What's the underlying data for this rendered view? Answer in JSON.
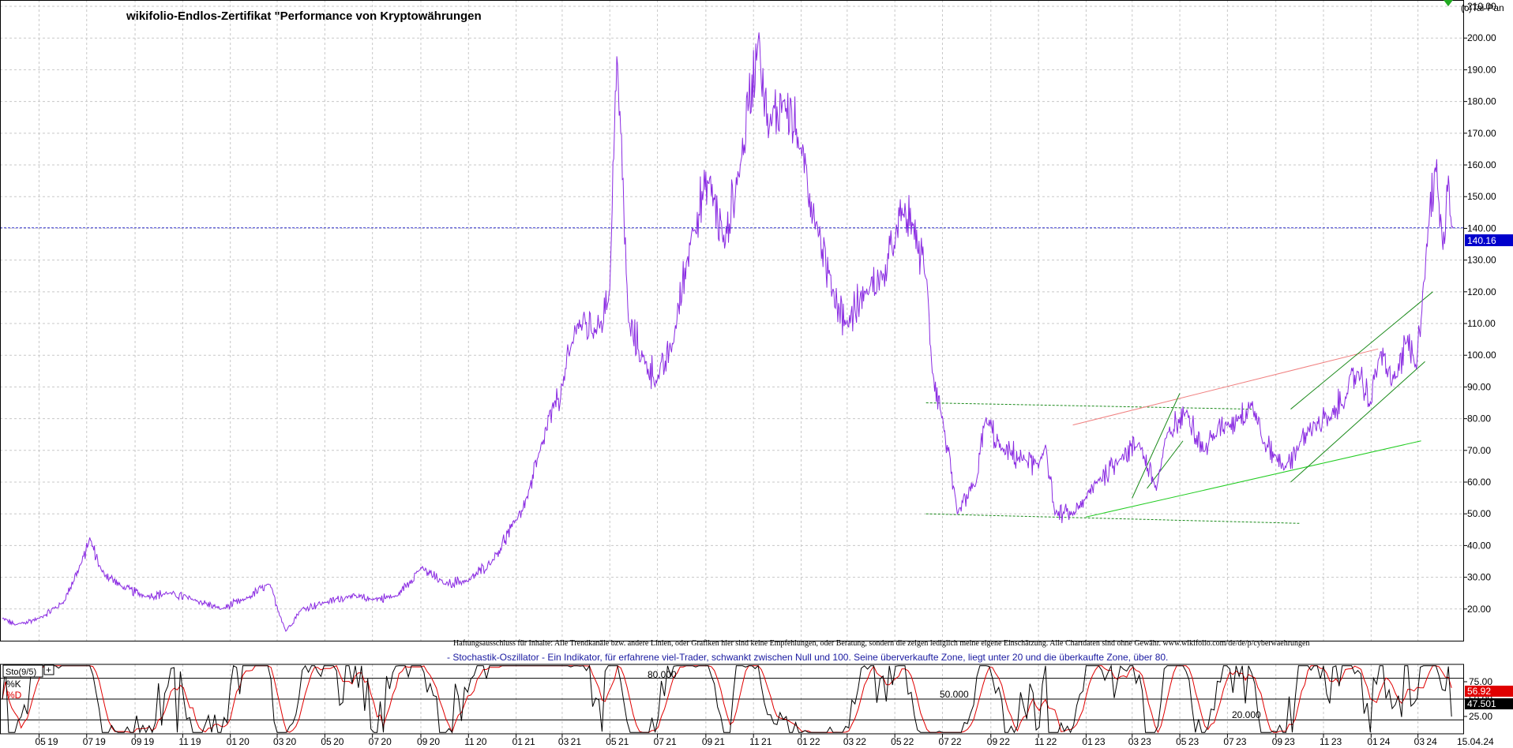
{
  "header": {
    "title": "wikifolio-Endlos-Zertifikat \"Performance von Kryptowährungen",
    "copyright": "(c)Tai-Pan"
  },
  "notes": {
    "disclaimer": "Haftungsausschluss für Inhalte: Alle Trendkanäle bzw. andere Linien, oder Grafiken hier sind keine Empfehlungen, oder Beratung, sondern die zeigen lediglich meine eigene Einschätzung. Alle Chartdaten sind ohne Gewähr. www.wikifolio.com/de/de/p/cyberwaehrungen",
    "oscillator_description": "- Stochastik-Oszillator - Ein Indikator, für erfahrene viel-Trader, schwankt zwischen Null und 100. Seine überverkaufte Zone, liegt unter 20 und die überkaufte Zone, über 80."
  },
  "colors": {
    "price_line": "#8a2be2",
    "current_price_line": "#3333cc",
    "k_line": "#000000",
    "d_line": "#e00000",
    "dark_green_trend": "#1a8a1a",
    "bright_green_trend": "#22cc22",
    "red_trend": "#f08080",
    "grid": "#c8c8c8"
  },
  "chart_data": [
    {
      "type": "line",
      "title": "wikifolio-Endlos-Zertifikat \"Performance von Kryptowährungen",
      "x_ticks": [
        "05.19",
        "07.19",
        "09.19",
        "11.19",
        "01.20",
        "03.20",
        "05.20",
        "07.20",
        "09.20",
        "11.20",
        "01.21",
        "03.21",
        "05.21",
        "07.21",
        "09.21",
        "11.21",
        "01.22",
        "03.22",
        "05.22",
        "07.22",
        "09.22",
        "11.22",
        "01.23",
        "03.23",
        "05.23",
        "07.23",
        "09.23",
        "11.23",
        "01.24",
        "03.24"
      ],
      "x_last_label": "15.04.24",
      "y_ticks": [
        "20.00",
        "30.00",
        "40.00",
        "50.00",
        "60.00",
        "70.00",
        "80.00",
        "90.00",
        "100.00",
        "110.00",
        "120.00",
        "130.00",
        "140.00",
        "150.00",
        "160.00",
        "170.00",
        "180.00",
        "190.00",
        "200.00",
        "210.00"
      ],
      "ylim": [
        10,
        212
      ],
      "grid": true,
      "current_value": "140.16",
      "series": [
        {
          "x": [
            "2019-03-15",
            "2019-04-01",
            "2019-05-01",
            "2019-06-01",
            "2019-06-25",
            "2019-07-05",
            "2019-07-20",
            "2019-08-15",
            "2019-09-15",
            "2019-10-15",
            "2019-11-15",
            "2019-12-20",
            "2020-01-20",
            "2020-02-20",
            "2020-03-12",
            "2020-04-01",
            "2020-05-01",
            "2020-06-01",
            "2020-07-01",
            "2020-08-01",
            "2020-09-01",
            "2020-10-01",
            "2020-11-01",
            "2020-12-01",
            "2021-01-01",
            "2021-01-15",
            "2021-02-01",
            "2021-02-20",
            "2021-03-01",
            "2021-03-20",
            "2021-04-14",
            "2021-05-01",
            "2021-05-10",
            "2021-05-25",
            "2021-06-15",
            "2021-07-01",
            "2021-07-20",
            "2021-08-15",
            "2021-09-05",
            "2021-09-25",
            "2021-10-15",
            "2021-11-08",
            "2021-11-20",
            "2021-12-10",
            "2022-01-01",
            "2022-01-22",
            "2022-02-10",
            "2022-03-01",
            "2022-03-25",
            "2022-04-15",
            "2022-05-01",
            "2022-05-12",
            "2022-05-25",
            "2022-06-10",
            "2022-06-18",
            "2022-07-01",
            "2022-07-20",
            "2022-08-13",
            "2022-08-25",
            "2022-09-15",
            "2022-10-15",
            "2022-11-01",
            "2022-11-10",
            "2022-11-22",
            "2022-12-15",
            "2023-01-01",
            "2023-01-15",
            "2023-02-15",
            "2023-03-10",
            "2023-04-01",
            "2023-04-15",
            "2023-05-10",
            "2023-06-01",
            "2023-06-15",
            "2023-07-01",
            "2023-07-15",
            "2023-08-01",
            "2023-08-17",
            "2023-09-01",
            "2023-09-15",
            "2023-10-01",
            "2023-10-20",
            "2023-11-10",
            "2023-12-01",
            "2023-12-15",
            "2024-01-01",
            "2024-01-11",
            "2024-01-23",
            "2024-02-01",
            "2024-02-15",
            "2024-02-28",
            "2024-03-07",
            "2024-03-14",
            "2024-03-25",
            "2024-04-01",
            "2024-04-09",
            "2024-04-15"
          ],
          "y": [
            17,
            15,
            17,
            22,
            35,
            42,
            32,
            27,
            24,
            25,
            23,
            20,
            23,
            28,
            13,
            20,
            22,
            24,
            23,
            24,
            33,
            28,
            29,
            35,
            48,
            55,
            70,
            85,
            90,
            110,
            108,
            120,
            196,
            110,
            98,
            92,
            103,
            140,
            155,
            135,
            160,
            200,
            170,
            182,
            165,
            140,
            120,
            110,
            120,
            125,
            135,
            145,
            140,
            125,
            95,
            80,
            50,
            60,
            80,
            70,
            67,
            65,
            72,
            50,
            50,
            55,
            60,
            68,
            72,
            58,
            75,
            82,
            70,
            75,
            78,
            80,
            85,
            72,
            68,
            65,
            72,
            78,
            80,
            88,
            95,
            85,
            100,
            95,
            92,
            105,
            95,
            120,
            140,
            160,
            135,
            155,
            140
          ]
        }
      ]
    },
    {
      "type": "line",
      "title": "Sto(9/5)",
      "legend": [
        "%K",
        "%D"
      ],
      "y_ticks": [
        "25.00",
        "50.00",
        "75.00"
      ],
      "levels": [
        "80.000",
        "50.000",
        "20.000"
      ],
      "ylim": [
        0,
        100
      ],
      "last_k": "56.92",
      "last_d": "47.501"
    }
  ]
}
